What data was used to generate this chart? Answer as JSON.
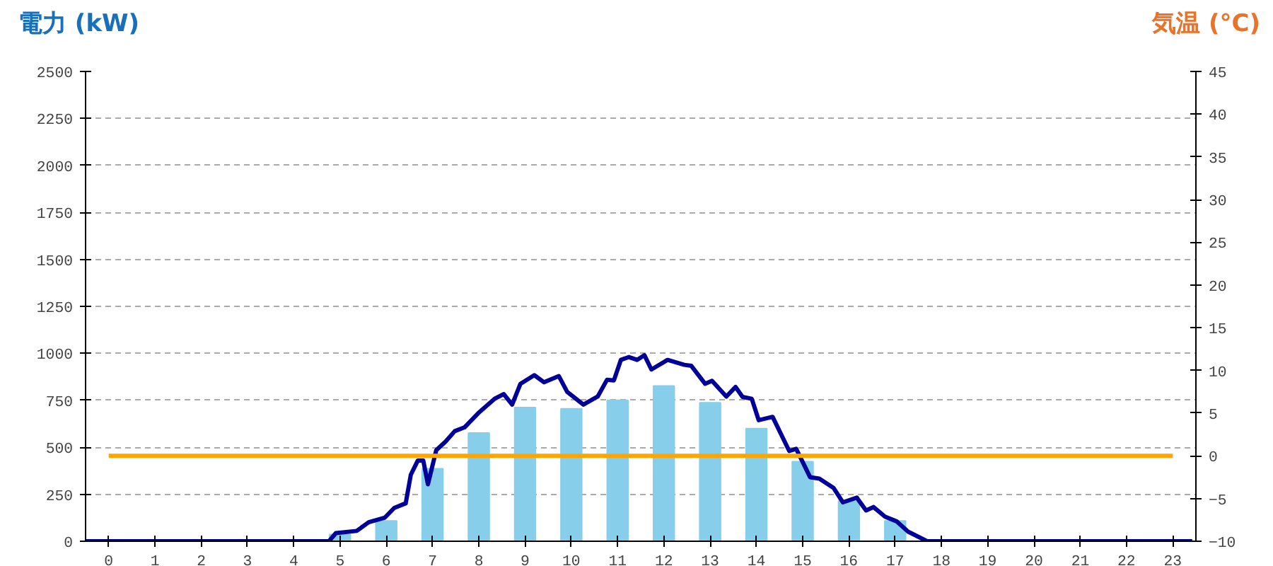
{
  "chart_data": {
    "type": "bar",
    "ylabel": "電力 (kW)",
    "y2label": "気温 (°C)",
    "x": [
      0,
      1,
      2,
      3,
      4,
      5,
      6,
      7,
      8,
      9,
      10,
      11,
      12,
      13,
      14,
      15,
      16,
      17,
      18,
      19,
      20,
      21,
      22,
      23
    ],
    "xlim": [
      -0.5,
      23.5
    ],
    "xticks": [
      0,
      1,
      2,
      3,
      4,
      5,
      6,
      7,
      8,
      9,
      10,
      11,
      12,
      13,
      14,
      15,
      16,
      17,
      18,
      19,
      20,
      21,
      22,
      23
    ],
    "ylim": [
      0,
      2500
    ],
    "yticks": [
      0,
      250,
      500,
      750,
      1000,
      1250,
      1500,
      1750,
      2000,
      2250,
      2500
    ],
    "y2lim": [
      -10,
      45
    ],
    "y2ticks": [
      -10,
      -5,
      0,
      5,
      10,
      15,
      20,
      25,
      30,
      35,
      40,
      45
    ],
    "grid": "y",
    "series": [
      {
        "color": "#87ceea",
        "values": [
          0,
          0,
          0,
          0,
          0,
          36,
          108,
          386,
          576,
          712,
          705,
          750,
          826,
          737,
          600,
          424,
          214,
          108,
          0,
          0,
          0,
          0,
          0,
          0
        ]
      },
      {
        "type": "line",
        "color": "#000099",
        "x": [
          -0.5,
          4.76,
          4.91,
          5.36,
          5.62,
          5.97,
          6.17,
          6.42,
          6.53,
          6.68,
          6.8,
          6.9,
          7.08,
          7.28,
          7.48,
          7.69,
          7.99,
          8.34,
          8.54,
          8.72,
          8.9,
          9.2,
          9.41,
          9.73,
          9.91,
          10.26,
          10.57,
          10.77,
          10.92,
          11.07,
          11.24,
          11.42,
          11.58,
          11.73,
          12.08,
          12.44,
          12.59,
          12.89,
          13.04,
          13.35,
          13.55,
          13.7,
          13.9,
          14.05,
          14.35,
          14.71,
          14.86,
          15.16,
          15.36,
          15.67,
          15.87,
          16.17,
          16.37,
          16.53,
          16.78,
          17.03,
          17.28,
          17.69,
          23.42
        ],
        "values": [
          0,
          0,
          43,
          55,
          101,
          126,
          177,
          202,
          354,
          429,
          429,
          303,
          485,
          530,
          586,
          606,
          682,
          758,
          783,
          727,
          838,
          884,
          846,
          879,
          795,
          727,
          770,
          859,
          856,
          965,
          980,
          965,
          990,
          914,
          965,
          939,
          934,
          838,
          854,
          770,
          821,
          768,
          758,
          644,
          662,
          480,
          492,
          341,
          333,
          283,
          207,
          232,
          164,
          182,
          131,
          106,
          51,
          0,
          0
        ]
      },
      {
        "type": "line",
        "axis": "y2",
        "color": "#ffa500",
        "values": [
          0,
          0,
          0,
          0,
          0,
          0,
          0,
          0,
          0,
          0,
          0,
          0,
          0,
          0,
          0,
          0,
          0,
          0,
          0,
          0,
          0,
          0,
          0,
          0
        ]
      }
    ]
  }
}
